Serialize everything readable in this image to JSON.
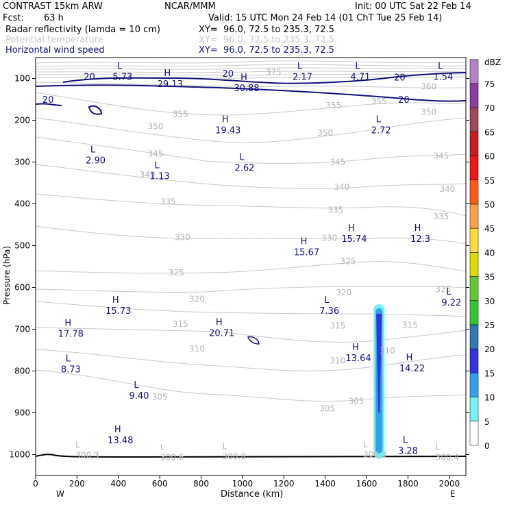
{
  "header": {
    "title_left": "CONTRAST 15km ARW",
    "title_center": "NCAR/MMM",
    "init": "Init: 00 UTC Sat 22 Feb 14",
    "fcst_label": "Fcst:",
    "fcst_value": "63 h",
    "valid": "Valid: 15 UTC Mon 24 Feb 14 (01 ChT Tue 25 Feb 14)",
    "fields": [
      {
        "name": "Radar reflectivity (lamda = 10 cm)",
        "xy": "XY=  96.0, 72.5 to 235.3, 72.5",
        "color": "#000000"
      },
      {
        "name": "Potential temperature",
        "xy": "XY=  96.0, 72.5 to 235.3, 72.5",
        "color": "#c8c8c8"
      },
      {
        "name": "Horizontal wind speed",
        "xy": "XY=  96.0, 72.5 to 235.3, 72.5",
        "color": "#10107a"
      }
    ]
  },
  "axes": {
    "ylabel": "Pressure (hPa)",
    "xlabel": "Distance (km)",
    "west": "W",
    "east": "E",
    "yticks": [
      100,
      200,
      300,
      400,
      500,
      600,
      700,
      800,
      900,
      1000
    ],
    "xticks": [
      0,
      200,
      400,
      600,
      800,
      1000,
      1200,
      1400,
      1600,
      1800,
      2000
    ],
    "xlim": [
      0,
      2080
    ],
    "ylim": [
      1050,
      50
    ]
  },
  "colorbar": {
    "unit": "dBZ",
    "levels": [
      "75",
      "70",
      "65",
      "60",
      "55",
      "50",
      "45",
      "40",
      "35",
      "30",
      "25",
      "20",
      "15",
      "10",
      "5",
      "0"
    ],
    "colors": [
      "#b482c8",
      "#8c3ca0",
      "#a0465a",
      "#c81e1e",
      "#f01414",
      "#ff5a14",
      "#ffa050",
      "#ffdc3c",
      "#dcdc00",
      "#64c832",
      "#32c832",
      "#3278b4",
      "#3232e6",
      "#32a0f0",
      "#78f0f0",
      "#ffffff"
    ]
  },
  "chart_data": {
    "type": "cross-section",
    "theta_labels": [
      {
        "text": "375",
        "x": 1150,
        "p": 85
      },
      {
        "text": "360",
        "x": 1900,
        "p": 120
      },
      {
        "text": "355",
        "x": 1440,
        "p": 165
      },
      {
        "text": "355",
        "x": 1660,
        "p": 155
      },
      {
        "text": "355",
        "x": 700,
        "p": 185
      },
      {
        "text": "350",
        "x": 1900,
        "p": 180
      },
      {
        "text": "350",
        "x": 580,
        "p": 215
      },
      {
        "text": "350",
        "x": 1400,
        "p": 230
      },
      {
        "text": "345",
        "x": 580,
        "p": 280
      },
      {
        "text": "345",
        "x": 1460,
        "p": 300
      },
      {
        "text": "345",
        "x": 1960,
        "p": 285
      },
      {
        "text": "340",
        "x": 540,
        "p": 330
      },
      {
        "text": "340",
        "x": 1480,
        "p": 360
      },
      {
        "text": "340",
        "x": 1990,
        "p": 365
      },
      {
        "text": "335",
        "x": 640,
        "p": 395
      },
      {
        "text": "335",
        "x": 1450,
        "p": 415
      },
      {
        "text": "335",
        "x": 1960,
        "p": 430
      },
      {
        "text": "330",
        "x": 710,
        "p": 480
      },
      {
        "text": "330",
        "x": 1420,
        "p": 482
      },
      {
        "text": "325",
        "x": 680,
        "p": 565
      },
      {
        "text": "325",
        "x": 1510,
        "p": 538
      },
      {
        "text": "325",
        "x": 1970,
        "p": 605
      },
      {
        "text": "320",
        "x": 780,
        "p": 628
      },
      {
        "text": "320",
        "x": 1490,
        "p": 612
      },
      {
        "text": "315",
        "x": 700,
        "p": 688
      },
      {
        "text": "315",
        "x": 1460,
        "p": 692
      },
      {
        "text": "315",
        "x": 1810,
        "p": 690
      },
      {
        "text": "310",
        "x": 780,
        "p": 747
      },
      {
        "text": "310",
        "x": 1460,
        "p": 775
      },
      {
        "text": "310",
        "x": 1700,
        "p": 752
      },
      {
        "text": "305",
        "x": 600,
        "p": 862
      },
      {
        "text": "305",
        "x": 1410,
        "p": 890
      },
      {
        "text": "305",
        "x": 1550,
        "p": 872
      }
    ],
    "theta_extremes": [
      {
        "kind": "L",
        "value": "300.3",
        "x": 250,
        "p": 1000
      },
      {
        "kind": "L",
        "value": "300.6",
        "x": 660,
        "p": 1005
      },
      {
        "kind": "L",
        "value": "300.8",
        "x": 960,
        "p": 1003
      },
      {
        "kind": "L",
        "value": "300.3",
        "x": 1640,
        "p": 998
      },
      {
        "kind": "L",
        "value": "300.4",
        "x": 1990,
        "p": 1005
      }
    ],
    "wind_extremes": [
      {
        "kind": "L",
        "value": "5.73",
        "x": 420,
        "p": 90
      },
      {
        "kind": "H",
        "value": "29.13",
        "x": 650,
        "p": 107
      },
      {
        "kind": "H",
        "value": "30.88",
        "x": 1020,
        "p": 117
      },
      {
        "kind": "L",
        "value": "2.17",
        "x": 1290,
        "p": 90
      },
      {
        "kind": "L",
        "value": "4.71",
        "x": 1570,
        "p": 90
      },
      {
        "kind": "L",
        "value": "1.54",
        "x": 1970,
        "p": 90
      },
      {
        "kind": "H",
        "value": "19.43",
        "x": 930,
        "p": 218
      },
      {
        "kind": "L",
        "value": "2.72",
        "x": 1670,
        "p": 218
      },
      {
        "kind": "L",
        "value": "2.90",
        "x": 290,
        "p": 290
      },
      {
        "kind": "L",
        "value": "1.13",
        "x": 600,
        "p": 328
      },
      {
        "kind": "L",
        "value": "2.62",
        "x": 1010,
        "p": 308
      },
      {
        "kind": "H",
        "value": "15.74",
        "x": 1540,
        "p": 478
      },
      {
        "kind": "H",
        "value": "12.3",
        "x": 1860,
        "p": 478
      },
      {
        "kind": "H",
        "value": "15.67",
        "x": 1310,
        "p": 510
      },
      {
        "kind": "H",
        "value": "15.73",
        "x": 400,
        "p": 650
      },
      {
        "kind": "L",
        "value": "9.22",
        "x": 2010,
        "p": 630
      },
      {
        "kind": "L",
        "value": "7.36",
        "x": 1420,
        "p": 650
      },
      {
        "kind": "H",
        "value": "17.78",
        "x": 170,
        "p": 705
      },
      {
        "kind": "H",
        "value": "20.71",
        "x": 900,
        "p": 703
      },
      {
        "kind": "H",
        "value": "13.64",
        "x": 1560,
        "p": 763
      },
      {
        "kind": "L",
        "value": "8.73",
        "x": 170,
        "p": 790
      },
      {
        "kind": "H",
        "value": "14.22",
        "x": 1820,
        "p": 788
      },
      {
        "kind": "L",
        "value": "9.40",
        "x": 500,
        "p": 853
      },
      {
        "kind": "H",
        "value": "13.48",
        "x": 410,
        "p": 960
      },
      {
        "kind": "L",
        "value": "3.28",
        "x": 1800,
        "p": 985
      }
    ],
    "wind_contour_labels": [
      {
        "text": "20",
        "x": 260,
        "p": 95
      },
      {
        "text": "20",
        "x": 930,
        "p": 88
      },
      {
        "text": "20",
        "x": 1760,
        "p": 97
      },
      {
        "text": "20",
        "x": 60,
        "p": 150
      },
      {
        "text": "20",
        "x": 1780,
        "p": 150
      }
    ],
    "reflectivity_band": {
      "x_center_km": 1660,
      "p_top": 640,
      "p_bottom": 1010,
      "outer_dbz": 5,
      "inner_dbz": 10,
      "core_dbz": 15
    }
  }
}
